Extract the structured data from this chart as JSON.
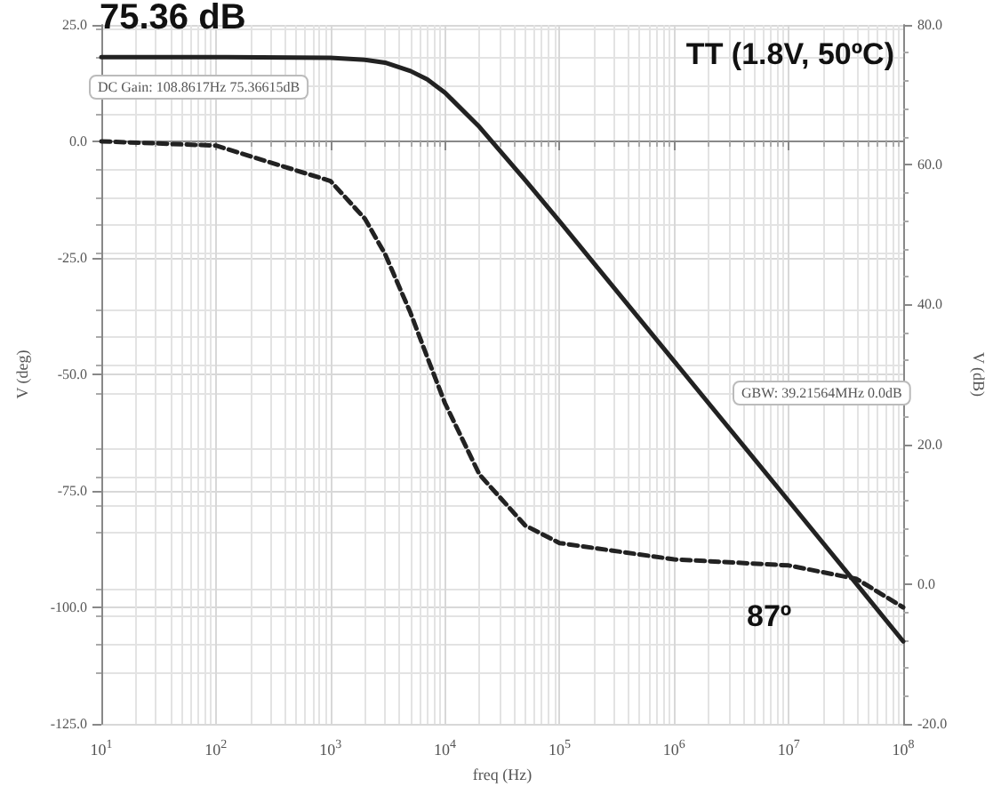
{
  "chart_data": {
    "type": "line",
    "xlabel": "freq (Hz)",
    "ylabel": "V (deg)",
    "y2label": "V (dB)",
    "x": [
      10,
      100,
      1000,
      2000,
      3000,
      5000,
      7000,
      10000,
      20000,
      50000,
      100000,
      1000000,
      10000000,
      39215640,
      100000000
    ],
    "series": [
      {
        "color": "#222222",
        "axis": "y2",
        "line_style": "solid",
        "values": [
          75.4,
          75.4,
          75.3,
          75.0,
          74.6,
          73.4,
          72.2,
          70.3,
          65.4,
          57.8,
          51.9,
          31.9,
          11.9,
          0,
          -8.2
        ]
      },
      {
        "color": "#222222",
        "line_style": "dashed",
        "values": [
          0,
          -0.9,
          -8.5,
          -16.6,
          -24.2,
          -36.8,
          -46.3,
          -56.2,
          -71.5,
          -82.4,
          -86.2,
          -89.7,
          -91.0,
          -93.9,
          -100
        ]
      }
    ],
    "log": "x",
    "xlim": [
      10,
      100000000
    ],
    "xticks": [
      {
        "value": 10,
        "label": "10$^{1}$"
      },
      {
        "value": 100,
        "label": "10$^{2}$"
      },
      {
        "value": 1000,
        "label": "10$^{3}$"
      },
      {
        "value": 10000,
        "label": "10$^{4}$"
      },
      {
        "value": 100000,
        "label": "10$^{5}$"
      },
      {
        "value": 1000000,
        "label": "10$^{6}$"
      },
      {
        "value": 10000000,
        "label": "10$^{7}$"
      },
      {
        "value": 100000000,
        "label": "10$^{8}$"
      }
    ],
    "ylim": [
      -125,
      25
    ],
    "yticks": [
      {
        "value": 25,
        "label": "25.0"
      },
      {
        "value": 0,
        "label": "0.0"
      },
      {
        "value": -25,
        "label": "-25.0"
      },
      {
        "value": -50,
        "label": "-50.0"
      },
      {
        "value": -75,
        "label": "-75.0"
      },
      {
        "value": -100,
        "label": "-100.0"
      },
      {
        "value": -125,
        "label": "-125.0"
      }
    ],
    "y2lim": [
      -20,
      80
    ],
    "y2ticks": [
      {
        "value": 80,
        "label": "80.0"
      },
      {
        "value": 60,
        "label": "60.0"
      },
      {
        "value": 40,
        "label": "40.0"
      },
      {
        "value": 20,
        "label": "20.0"
      },
      {
        "value": 0,
        "label": "0.0"
      },
      {
        "value": -20,
        "label": "-20.0"
      }
    ],
    "grid": true,
    "marker": "none",
    "annotations": [
      "75.36 dB",
      "TT (1.8V, 50ºC)",
      "DC Gain: 108.8617Hz 75.36615dB",
      "GBW: 39.21564MHz 0.0dB",
      "87º"
    ]
  }
}
